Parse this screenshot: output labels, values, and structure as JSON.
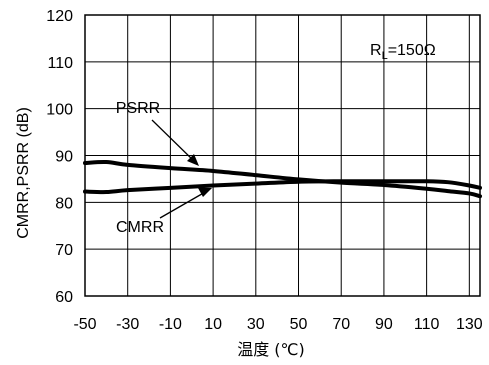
{
  "chart_data": {
    "type": "line",
    "xlabel": "温度 (℃)",
    "ylabel": "CMRR,PSRR (dB)",
    "xlim": [
      -50,
      135
    ],
    "ylim": [
      60,
      120
    ],
    "x_ticks": [
      -50,
      -30,
      -10,
      10,
      30,
      50,
      70,
      90,
      110,
      130
    ],
    "y_ticks": [
      60,
      70,
      80,
      90,
      100,
      110,
      120
    ],
    "grid": true,
    "annotation": {
      "prefix": "R",
      "subscript": "L",
      "suffix": "=150Ω"
    },
    "series": [
      {
        "name": "PSRR",
        "x": [
          -50,
          -40,
          -30,
          -10,
          10,
          30,
          50,
          70,
          90,
          110,
          120,
          130,
          135
        ],
        "y": [
          88.4,
          88.6,
          88.0,
          87.3,
          86.7,
          85.8,
          84.9,
          84.2,
          83.7,
          82.9,
          82.4,
          81.9,
          81.3
        ]
      },
      {
        "name": "CMRR",
        "x": [
          -50,
          -40,
          -30,
          -10,
          10,
          30,
          50,
          70,
          90,
          110,
          120,
          130,
          135
        ],
        "y": [
          82.3,
          82.2,
          82.6,
          83.1,
          83.6,
          84.0,
          84.4,
          84.5,
          84.5,
          84.5,
          84.3,
          83.6,
          83.1
        ]
      }
    ]
  }
}
